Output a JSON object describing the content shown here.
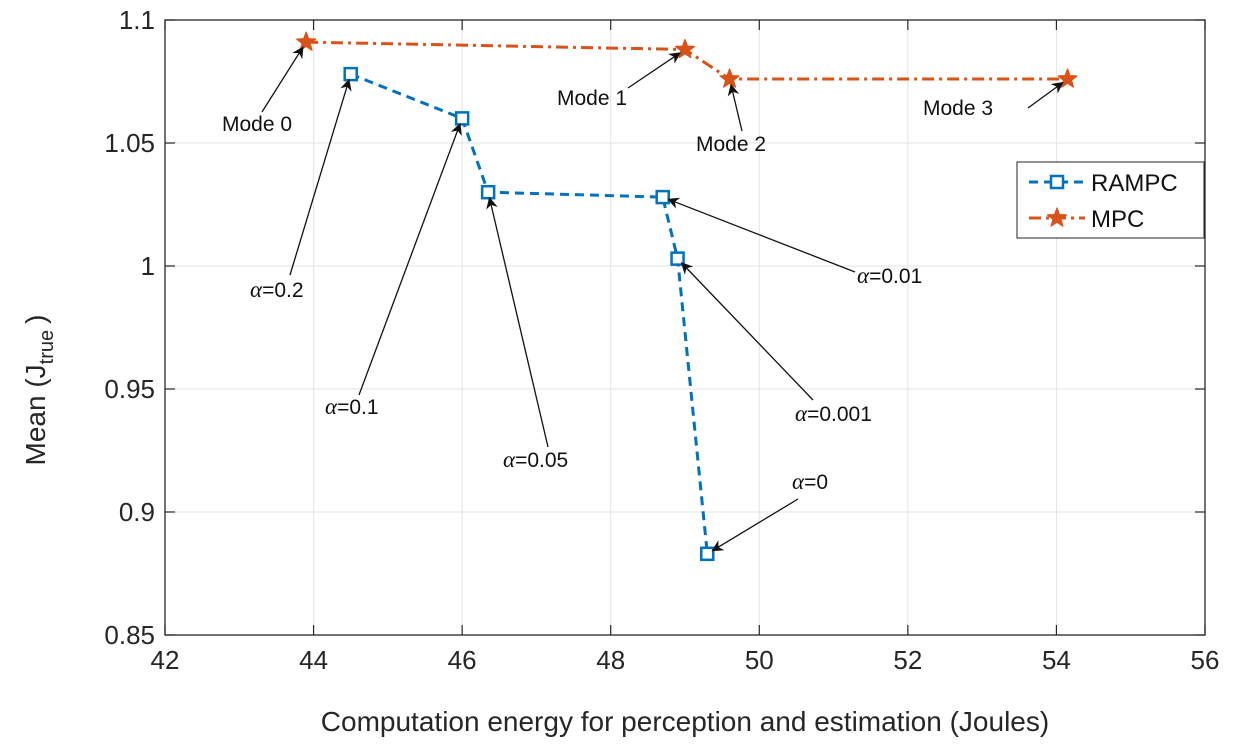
{
  "chart_data": {
    "type": "line",
    "xlabel": "Computation energy for perception and estimation (Joules)",
    "ylabel": "Mean (J",
    "ylabel_sub": "true",
    "ylabel_close": ")",
    "xlim": [
      42,
      56
    ],
    "ylim": [
      0.85,
      1.1
    ],
    "x_ticks": [
      "42",
      "44",
      "46",
      "48",
      "50",
      "52",
      "54",
      "56"
    ],
    "y_ticks": [
      "0.85",
      "0.9",
      "0.95",
      "1",
      "1.05",
      "1.1"
    ],
    "x_tick_values": [
      42,
      44,
      46,
      48,
      50,
      52,
      54,
      56
    ],
    "y_tick_values": [
      0.85,
      0.9,
      0.95,
      1.0,
      1.05,
      1.1
    ],
    "grid": true,
    "legend_position": "top-right",
    "series": [
      {
        "name": "RAMPC",
        "color": "#0072BD",
        "line_style": "dashed",
        "marker": "square",
        "points": [
          {
            "x": 44.5,
            "y": 1.078
          },
          {
            "x": 46.0,
            "y": 1.06
          },
          {
            "x": 46.35,
            "y": 1.03
          },
          {
            "x": 48.7,
            "y": 1.028
          },
          {
            "x": 48.9,
            "y": 1.003
          },
          {
            "x": 49.3,
            "y": 0.883
          }
        ]
      },
      {
        "name": "MPC",
        "color": "#D95319",
        "line_style": "dash-dot",
        "marker": "star",
        "points": [
          {
            "x": 43.9,
            "y": 1.091
          },
          {
            "x": 49.0,
            "y": 1.088
          },
          {
            "x": 49.6,
            "y": 1.076
          },
          {
            "x": 54.15,
            "y": 1.076
          }
        ]
      }
    ],
    "annotations": [
      {
        "prefix": "",
        "text": "Mode 0",
        "target": {
          "x": 43.9,
          "y": 1.091
        }
      },
      {
        "prefix": "",
        "text": "Mode 1",
        "target": {
          "x": 49.0,
          "y": 1.088
        }
      },
      {
        "prefix": "",
        "text": "Mode 2",
        "target": {
          "x": 49.6,
          "y": 1.076
        }
      },
      {
        "prefix": "",
        "text": "Mode 3",
        "target": {
          "x": 54.15,
          "y": 1.076
        }
      },
      {
        "prefix": "α",
        "text": "=0.2",
        "target": {
          "x": 44.5,
          "y": 1.078
        }
      },
      {
        "prefix": "α",
        "text": "=0.1",
        "target": {
          "x": 46.0,
          "y": 1.06
        }
      },
      {
        "prefix": "α",
        "text": "=0.05",
        "target": {
          "x": 46.35,
          "y": 1.03
        }
      },
      {
        "prefix": "α",
        "text": "=0.01",
        "target": {
          "x": 48.7,
          "y": 1.028
        }
      },
      {
        "prefix": "α",
        "text": "=0.001",
        "target": {
          "x": 48.9,
          "y": 1.003
        }
      },
      {
        "prefix": "α",
        "text": "=0",
        "target": {
          "x": 49.3,
          "y": 0.883
        }
      }
    ]
  }
}
